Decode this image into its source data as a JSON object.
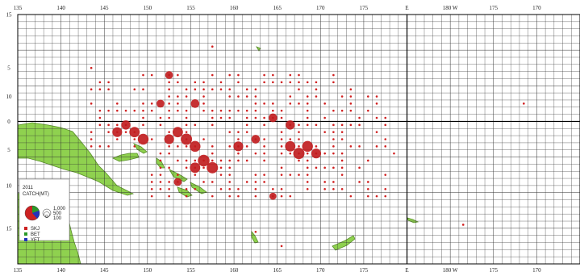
{
  "map": {
    "lon_range": [
      135,
      200
    ],
    "lat_range": [
      -20,
      15
    ],
    "grid_step_deg": 1,
    "tick_step_deg": 5,
    "top_lon_labels": [
      "135",
      "140",
      "145",
      "150",
      "155",
      "160",
      "165",
      "170",
      "175",
      "E",
      "180 W",
      "175",
      "170",
      "165",
      "160",
      "155"
    ],
    "bottom_lon_labels": [
      "135",
      "140",
      "145",
      "150",
      "155",
      "160",
      "165",
      "170",
      "175",
      "E",
      "180 W",
      "175",
      "170",
      "165",
      "160",
      "155"
    ],
    "lat_labels_left": [
      "15",
      "5",
      "10",
      "0",
      "5",
      "10",
      "15"
    ],
    "lat_labels_right": [
      "15",
      "5",
      "10",
      "0",
      "5",
      "10",
      "15"
    ]
  },
  "legend": {
    "title": "2011",
    "subtitle": "CATCH(MT)",
    "scale_labels": [
      "1,000",
      "500",
      "100"
    ],
    "gear_items": [
      {
        "code": "SKJ",
        "color": "#cc2222"
      },
      {
        "code": "BET",
        "color": "#2a9a2a"
      },
      {
        "code": "YFT",
        "color": "#2233bb"
      }
    ]
  },
  "colors": {
    "land": "#8fd14f",
    "land_outline": "#5a8e2a",
    "catch_dot": "#c0191c",
    "catch_dot_small": "#d02020",
    "grid_line": "#333333",
    "equator_line": "#000000"
  },
  "catch_data": {
    "description_units": "metric tonnes per 1x1 degree cell (estimated)",
    "cells": [
      {
        "lon": 149.5,
        "lat": -2.5,
        "catch": 800
      },
      {
        "lon": 148.5,
        "lat": -1.5,
        "catch": 700
      },
      {
        "lon": 146.5,
        "lat": -1.5,
        "catch": 600
      },
      {
        "lon": 147.5,
        "lat": -0.5,
        "catch": 500
      },
      {
        "lon": 153.5,
        "lat": -1.5,
        "catch": 700
      },
      {
        "lon": 154.5,
        "lat": -2.5,
        "catch": 900
      },
      {
        "lon": 152.5,
        "lat": -2.5,
        "catch": 600
      },
      {
        "lon": 155.5,
        "lat": -3.5,
        "catch": 800
      },
      {
        "lon": 156.5,
        "lat": -5.5,
        "catch": 1000
      },
      {
        "lon": 157.5,
        "lat": -6.5,
        "catch": 900
      },
      {
        "lon": 155.5,
        "lat": -6.5,
        "catch": 700
      },
      {
        "lon": 160.5,
        "lat": -3.5,
        "catch": 600
      },
      {
        "lon": 162.5,
        "lat": -2.5,
        "catch": 400
      },
      {
        "lon": 166.5,
        "lat": -3.5,
        "catch": 700
      },
      {
        "lon": 167.5,
        "lat": -4.5,
        "catch": 900
      },
      {
        "lon": 168.5,
        "lat": -3.5,
        "catch": 800
      },
      {
        "lon": 169.5,
        "lat": -4.5,
        "catch": 600
      },
      {
        "lon": 166.5,
        "lat": -0.5,
        "catch": 500
      },
      {
        "lon": 164.5,
        "lat": 0.5,
        "catch": 400
      },
      {
        "lon": 152.5,
        "lat": 6.5,
        "catch": 300
      },
      {
        "lon": 155.5,
        "lat": 2.5,
        "catch": 400
      },
      {
        "lon": 151.5,
        "lat": 2.5,
        "catch": 300
      },
      {
        "lon": 153.5,
        "lat": -8.5,
        "catch": 300
      },
      {
        "lon": 164.5,
        "lat": -10.5,
        "catch": 200
      }
    ]
  }
}
